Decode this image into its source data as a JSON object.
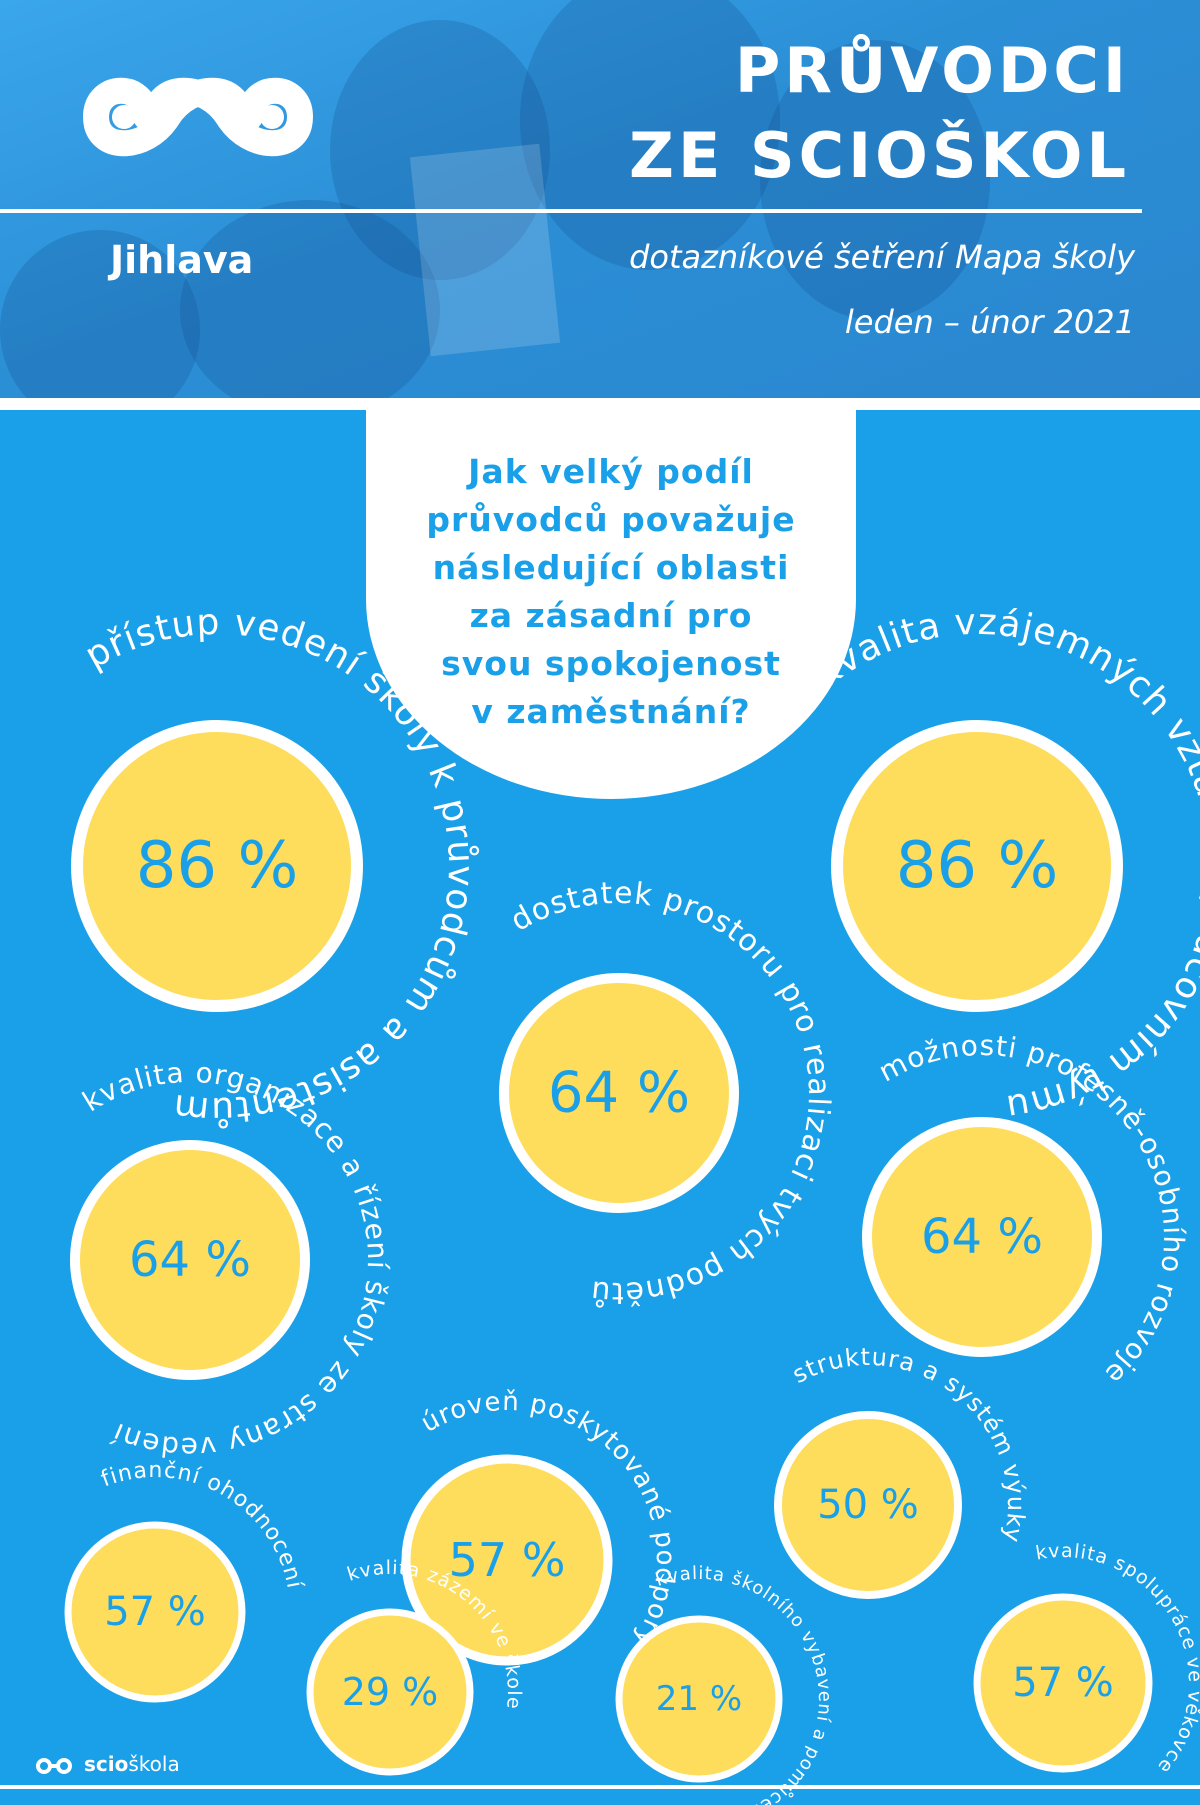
{
  "header": {
    "title_line1": "PRŮVODCI",
    "title_line2": "ZE SCIOŠKOL",
    "city": "Jihlava",
    "survey_name": "dotazníkové šetření Mapa školy",
    "survey_date": "leden – únor 2021",
    "logo_icon": "infinity-logo-icon"
  },
  "question": {
    "lines": [
      "Jak velký podíl",
      "průvodců považuje",
      "následující oblasti",
      "za zásadní pro",
      "svou spokojenost",
      "v zaměstnání?"
    ]
  },
  "colors": {
    "background": "#1aa0e8",
    "bubble_fill": "#fedc5c",
    "bubble_ring": "#ffffff",
    "text_white": "#ffffff"
  },
  "chart_data": {
    "type": "bubble-infographic",
    "unit": "%",
    "items": [
      {
        "label": "přístup vedení školy k průvodcům a asistentům",
        "value": 86,
        "display": "86 %"
      },
      {
        "label": "kvalita vzájemných vztahů v pracovním týmu",
        "value": 86,
        "display": "86 %"
      },
      {
        "label": "dostatek prostoru pro realizaci tvých podnětů",
        "value": 64,
        "display": "64 %"
      },
      {
        "label": "kvalita organizace a řízení školy ze strany vedení",
        "value": 64,
        "display": "64 %"
      },
      {
        "label": "možnosti profesně-osobního rozvoje",
        "value": 64,
        "display": "64 %"
      },
      {
        "label": "úroveň poskytované podpory",
        "value": 57,
        "display": "57 %"
      },
      {
        "label": "struktura a systém výuky",
        "value": 50,
        "display": "50 %"
      },
      {
        "label": "finanční ohodnocení",
        "value": 57,
        "display": "57 %"
      },
      {
        "label": "kvalita zázemí ve škole",
        "value": 29,
        "display": "29 %"
      },
      {
        "label": "kvalita školního vybavení a pomůcek",
        "value": 21,
        "display": "21 %"
      },
      {
        "label": "kvalita spolupráce ve věkovce",
        "value": 57,
        "display": "57 %"
      }
    ]
  },
  "footer": {
    "brand_prefix": "scio",
    "brand_suffix": "škola",
    "logo_icon": "infinity-logo-small-icon"
  }
}
